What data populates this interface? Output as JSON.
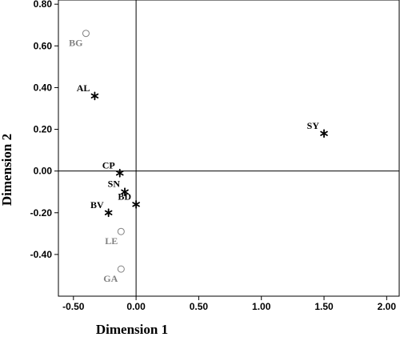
{
  "chart_data": {
    "type": "scatter",
    "title": "",
    "xlabel": "Dimension 1",
    "ylabel": "Dimension 2",
    "xlim": [
      -0.62,
      2.1
    ],
    "ylim": [
      -0.6,
      0.82
    ],
    "x_ticks": [
      -0.5,
      0.0,
      0.5,
      1.0,
      1.5,
      2.0
    ],
    "x_tick_labels": [
      "-0.50",
      "0.00",
      "0.50",
      "1.00",
      "1.50",
      "2.00"
    ],
    "y_ticks": [
      -0.4,
      -0.2,
      0.0,
      0.2,
      0.4,
      0.6,
      0.8
    ],
    "y_tick_labels": [
      "-0.40",
      "-0.20",
      "0.00",
      "0.20",
      "0.40",
      "0.60",
      "0.80"
    ],
    "grid": false,
    "reference_lines": {
      "x": 0,
      "y": 0
    },
    "series": [
      {
        "marker": "star",
        "color": "#000000",
        "points": [
          {
            "label": "AL",
            "x": -0.33,
            "y": 0.36
          },
          {
            "label": "SY",
            "x": 1.5,
            "y": 0.18
          },
          {
            "label": "CP",
            "x": -0.13,
            "y": -0.01
          },
          {
            "label": "SN",
            "x": -0.09,
            "y": -0.1
          },
          {
            "label": "BD",
            "x": 0.0,
            "y": -0.16
          },
          {
            "label": "BV",
            "x": -0.22,
            "y": -0.2
          }
        ]
      },
      {
        "marker": "circle",
        "color": "#808080",
        "points": [
          {
            "label": "BG",
            "x": -0.4,
            "y": 0.66
          },
          {
            "label": "LE",
            "x": -0.12,
            "y": -0.29
          },
          {
            "label": "GA",
            "x": -0.12,
            "y": -0.47
          }
        ]
      }
    ]
  }
}
